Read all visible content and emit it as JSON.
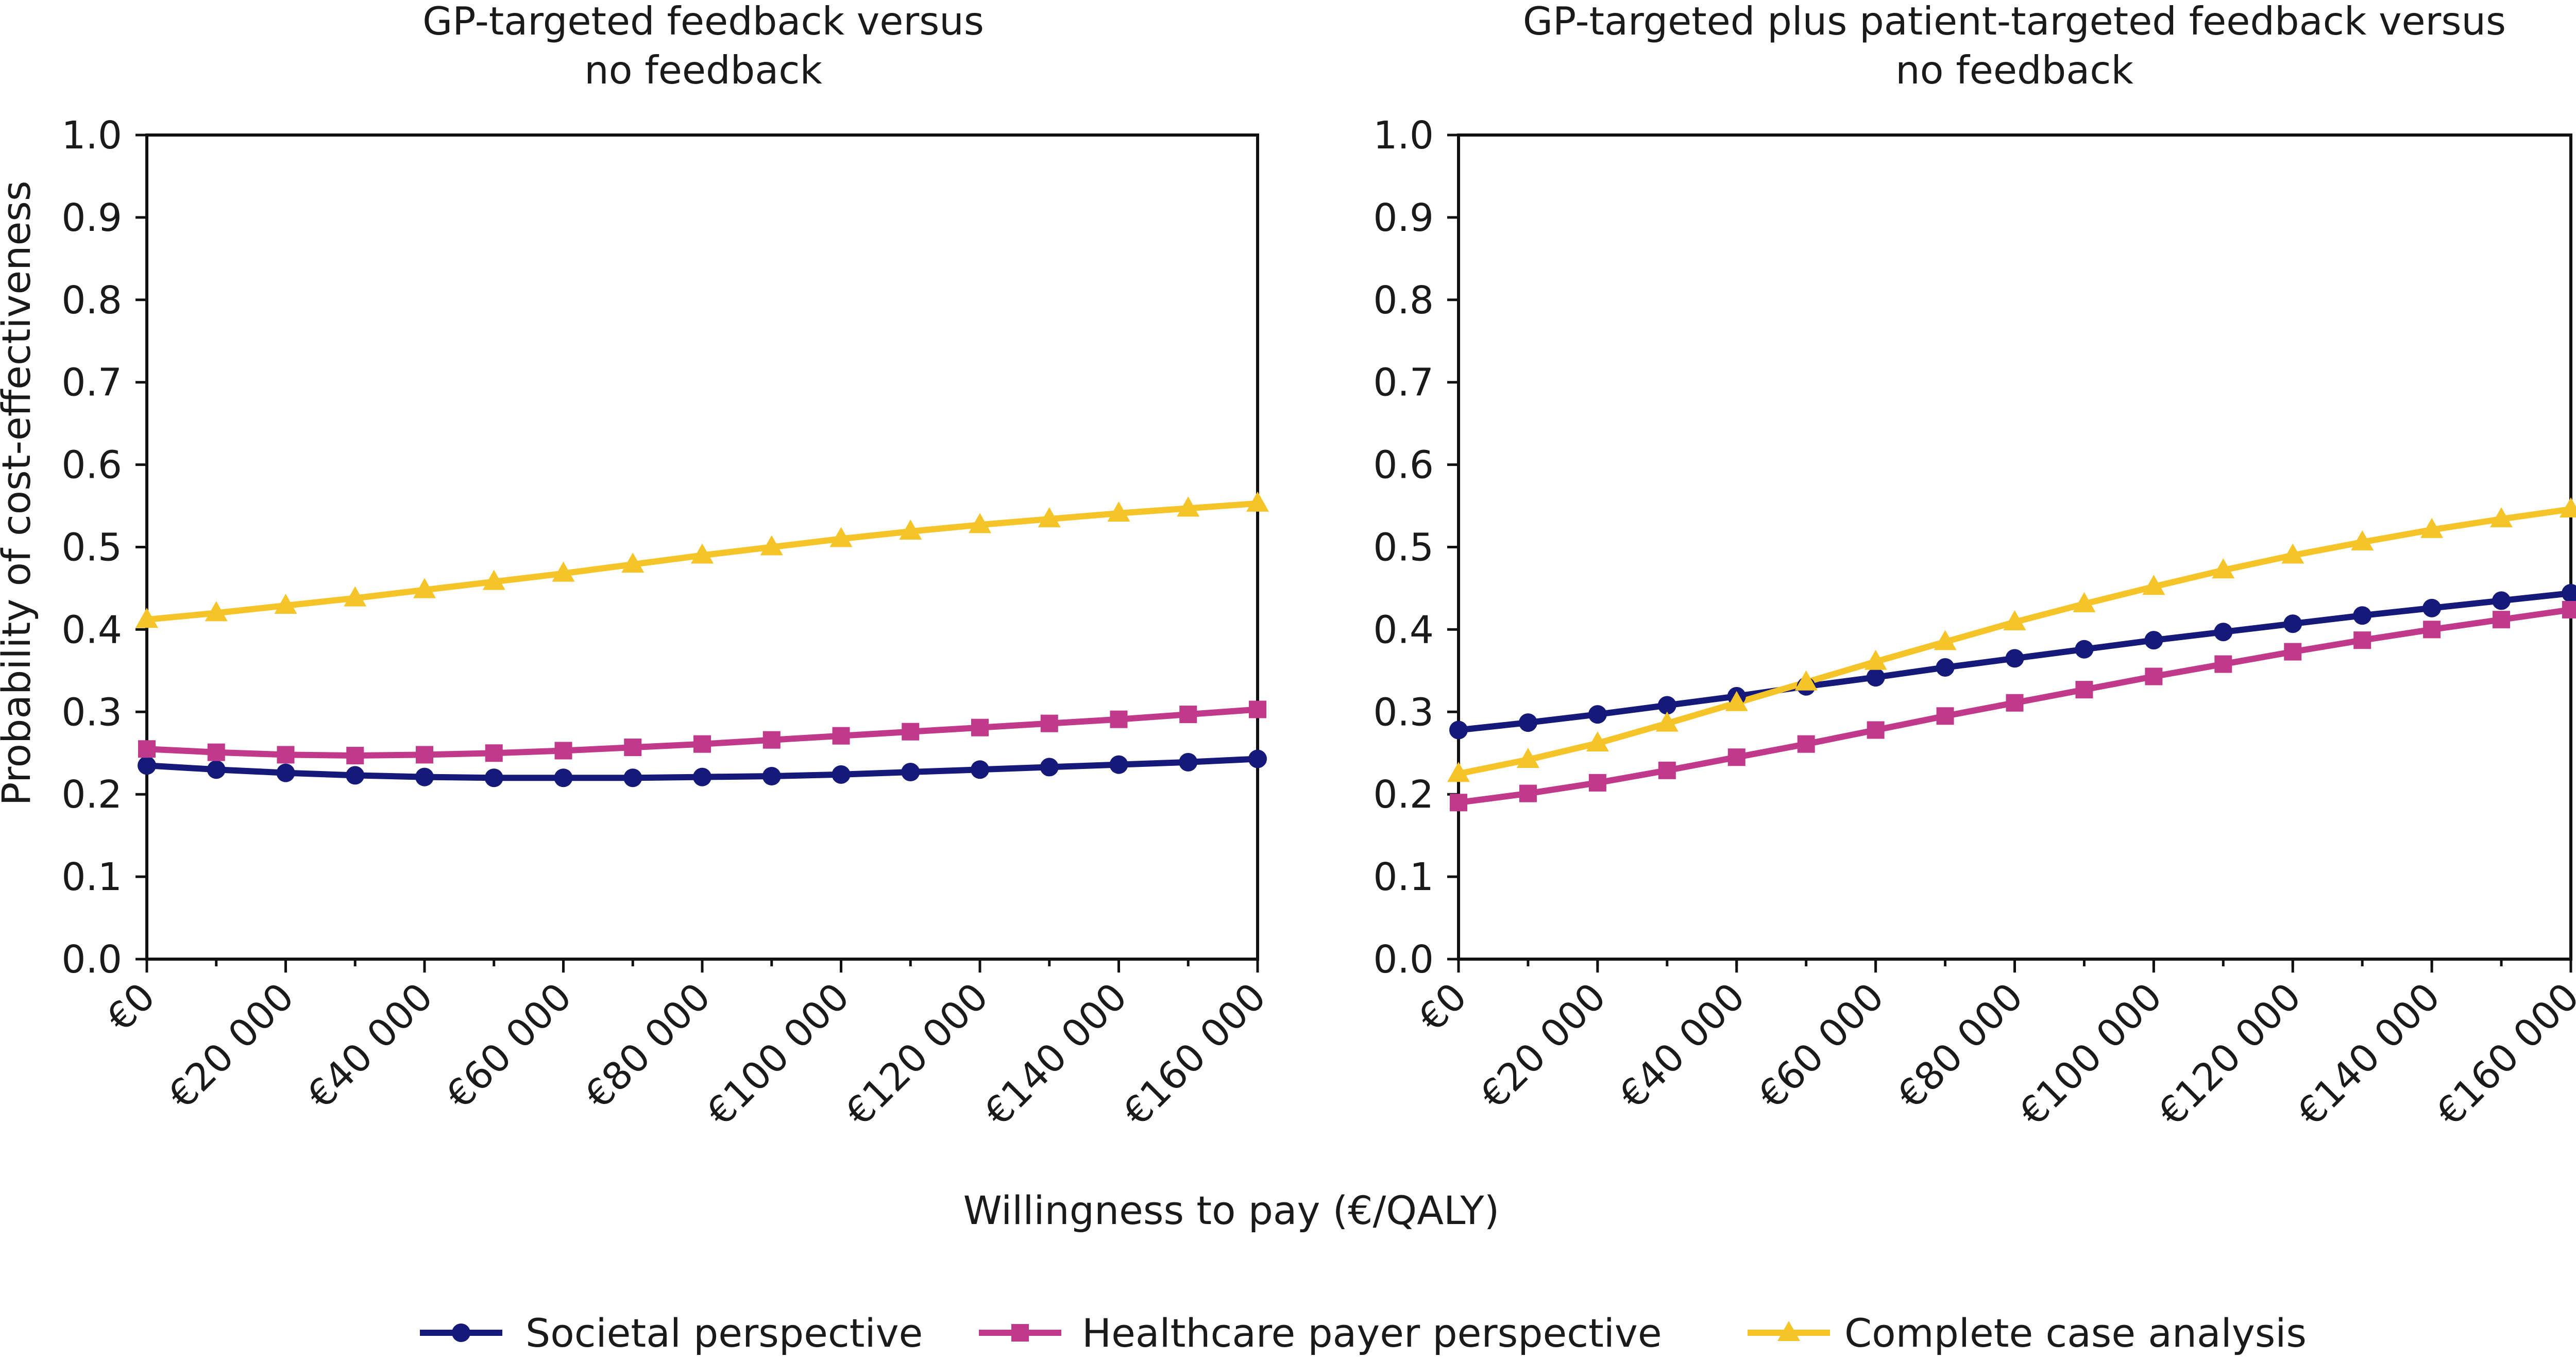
{
  "ylabel": "Probability of cost-effectiveness",
  "xlabel": "Willingness to pay (€/QALY)",
  "legend": {
    "position": "bottom",
    "items": [
      {
        "label": "Societal perspective",
        "color": "#151a7a",
        "marker": "circle"
      },
      {
        "label": "Healthcare payer perspective",
        "color": "#c0398a",
        "marker": "square"
      },
      {
        "label": "Complete case analysis",
        "color": "#f5c428",
        "marker": "triangle"
      }
    ]
  },
  "chart_data": [
    {
      "type": "line",
      "title_lines": [
        "GP-targeted feedback versus",
        "no feedback"
      ],
      "x": [
        0,
        10000,
        20000,
        30000,
        40000,
        50000,
        60000,
        70000,
        80000,
        90000,
        100000,
        110000,
        120000,
        130000,
        140000,
        150000,
        160000
      ],
      "xticks": [
        0,
        20000,
        40000,
        60000,
        80000,
        100000,
        120000,
        140000,
        160000
      ],
      "xtick_labels": [
        "€0",
        "€20 000",
        "€40 000",
        "€60 000",
        "€80 000",
        "€100 000",
        "€120 000",
        "€140 000",
        "€160 000"
      ],
      "xlim": [
        0,
        160000
      ],
      "ylim": [
        0,
        1
      ],
      "yticks": [
        0.0,
        0.1,
        0.2,
        0.3,
        0.4,
        0.5,
        0.6,
        0.7,
        0.8,
        0.9,
        1.0
      ],
      "ytick_labels": [
        "0.0",
        "0.1",
        "0.2",
        "0.3",
        "0.4",
        "0.5",
        "0.6",
        "0.7",
        "0.8",
        "0.9",
        "1.0"
      ],
      "grid": false,
      "series": [
        {
          "name": "Societal perspective",
          "color": "#151a7a",
          "marker": "circle",
          "values": [
            0.235,
            0.23,
            0.226,
            0.223,
            0.221,
            0.22,
            0.22,
            0.22,
            0.221,
            0.222,
            0.224,
            0.227,
            0.23,
            0.233,
            0.236,
            0.239,
            0.243
          ]
        },
        {
          "name": "Healthcare payer perspective",
          "color": "#c0398a",
          "marker": "square",
          "values": [
            0.255,
            0.251,
            0.248,
            0.247,
            0.248,
            0.25,
            0.253,
            0.257,
            0.261,
            0.266,
            0.271,
            0.276,
            0.281,
            0.286,
            0.291,
            0.297,
            0.303
          ]
        },
        {
          "name": "Complete case analysis",
          "color": "#f5c428",
          "marker": "triangle",
          "values": [
            0.412,
            0.42,
            0.429,
            0.438,
            0.448,
            0.458,
            0.468,
            0.479,
            0.49,
            0.5,
            0.51,
            0.519,
            0.527,
            0.534,
            0.541,
            0.547,
            0.553
          ]
        }
      ]
    },
    {
      "type": "line",
      "title_lines": [
        "GP-targeted plus patient-targeted feedback versus",
        "no feedback"
      ],
      "x": [
        0,
        10000,
        20000,
        30000,
        40000,
        50000,
        60000,
        70000,
        80000,
        90000,
        100000,
        110000,
        120000,
        130000,
        140000,
        150000,
        160000
      ],
      "xticks": [
        0,
        20000,
        40000,
        60000,
        80000,
        100000,
        120000,
        140000,
        160000
      ],
      "xtick_labels": [
        "€0",
        "€20 000",
        "€40 000",
        "€60 000",
        "€80 000",
        "€100 000",
        "€120 000",
        "€140 000",
        "€160 000"
      ],
      "xlim": [
        0,
        160000
      ],
      "ylim": [
        0,
        1
      ],
      "yticks": [
        0.0,
        0.1,
        0.2,
        0.3,
        0.4,
        0.5,
        0.6,
        0.7,
        0.8,
        0.9,
        1.0
      ],
      "ytick_labels": [
        "0.0",
        "0.1",
        "0.2",
        "0.3",
        "0.4",
        "0.5",
        "0.6",
        "0.7",
        "0.8",
        "0.9",
        "1.0"
      ],
      "grid": false,
      "series": [
        {
          "name": "Societal perspective",
          "color": "#151a7a",
          "marker": "circle",
          "values": [
            0.278,
            0.287,
            0.297,
            0.308,
            0.319,
            0.331,
            0.342,
            0.354,
            0.365,
            0.376,
            0.387,
            0.397,
            0.407,
            0.417,
            0.426,
            0.435,
            0.444
          ]
        },
        {
          "name": "Healthcare payer perspective",
          "color": "#c0398a",
          "marker": "square",
          "values": [
            0.19,
            0.201,
            0.214,
            0.229,
            0.245,
            0.261,
            0.278,
            0.295,
            0.311,
            0.327,
            0.343,
            0.358,
            0.373,
            0.387,
            0.4,
            0.412,
            0.424
          ]
        },
        {
          "name": "Complete case analysis",
          "color": "#f5c428",
          "marker": "triangle",
          "values": [
            0.225,
            0.242,
            0.262,
            0.286,
            0.311,
            0.336,
            0.361,
            0.385,
            0.409,
            0.431,
            0.452,
            0.472,
            0.49,
            0.506,
            0.521,
            0.534,
            0.546
          ]
        }
      ]
    }
  ]
}
